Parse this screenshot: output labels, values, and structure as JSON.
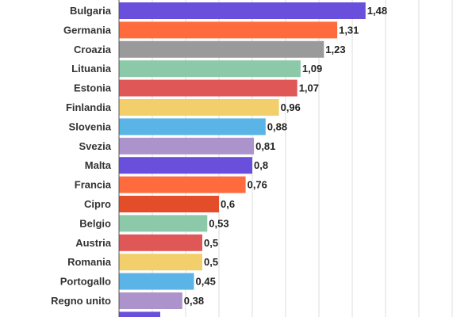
{
  "chart_data": {
    "type": "bar",
    "orientation": "horizontal",
    "categories": [
      "Bulgaria",
      "Germania",
      "Croazia",
      "Lituania",
      "Estonia",
      "Finlandia",
      "Slovenia",
      "Svezia",
      "Malta",
      "Francia",
      "Cipro",
      "Belgio",
      "Austria",
      "Romania",
      "Portogallo",
      "Regno unito"
    ],
    "values": [
      1.48,
      1.31,
      1.23,
      1.09,
      1.07,
      0.96,
      0.88,
      0.81,
      0.8,
      0.76,
      0.6,
      0.53,
      0.5,
      0.5,
      0.45,
      0.38
    ],
    "value_labels": [
      "1,48",
      "1,31",
      "1,23",
      "1,09",
      "1,07",
      "0,96",
      "0,88",
      "0,81",
      "0,8",
      "0,76",
      "0,6",
      "0,53",
      "0,5",
      "0,5",
      "0,45",
      "0,38"
    ],
    "colors": [
      "#6a4fdc",
      "#ff6b3d",
      "#9a9a9a",
      "#8cc9a8",
      "#e05757",
      "#f2cf6b",
      "#5ab4e5",
      "#ad93cc",
      "#6a4fdc",
      "#ff6b3d",
      "#e34d2a",
      "#8cc9a8",
      "#e05757",
      "#f2cf6b",
      "#5ab4e5",
      "#ad93cc"
    ],
    "partial_next": {
      "color": "#6a4fdc"
    },
    "xlim": [
      0,
      2.0
    ],
    "grid": true,
    "title": "",
    "xlabel": "",
    "ylabel": ""
  }
}
